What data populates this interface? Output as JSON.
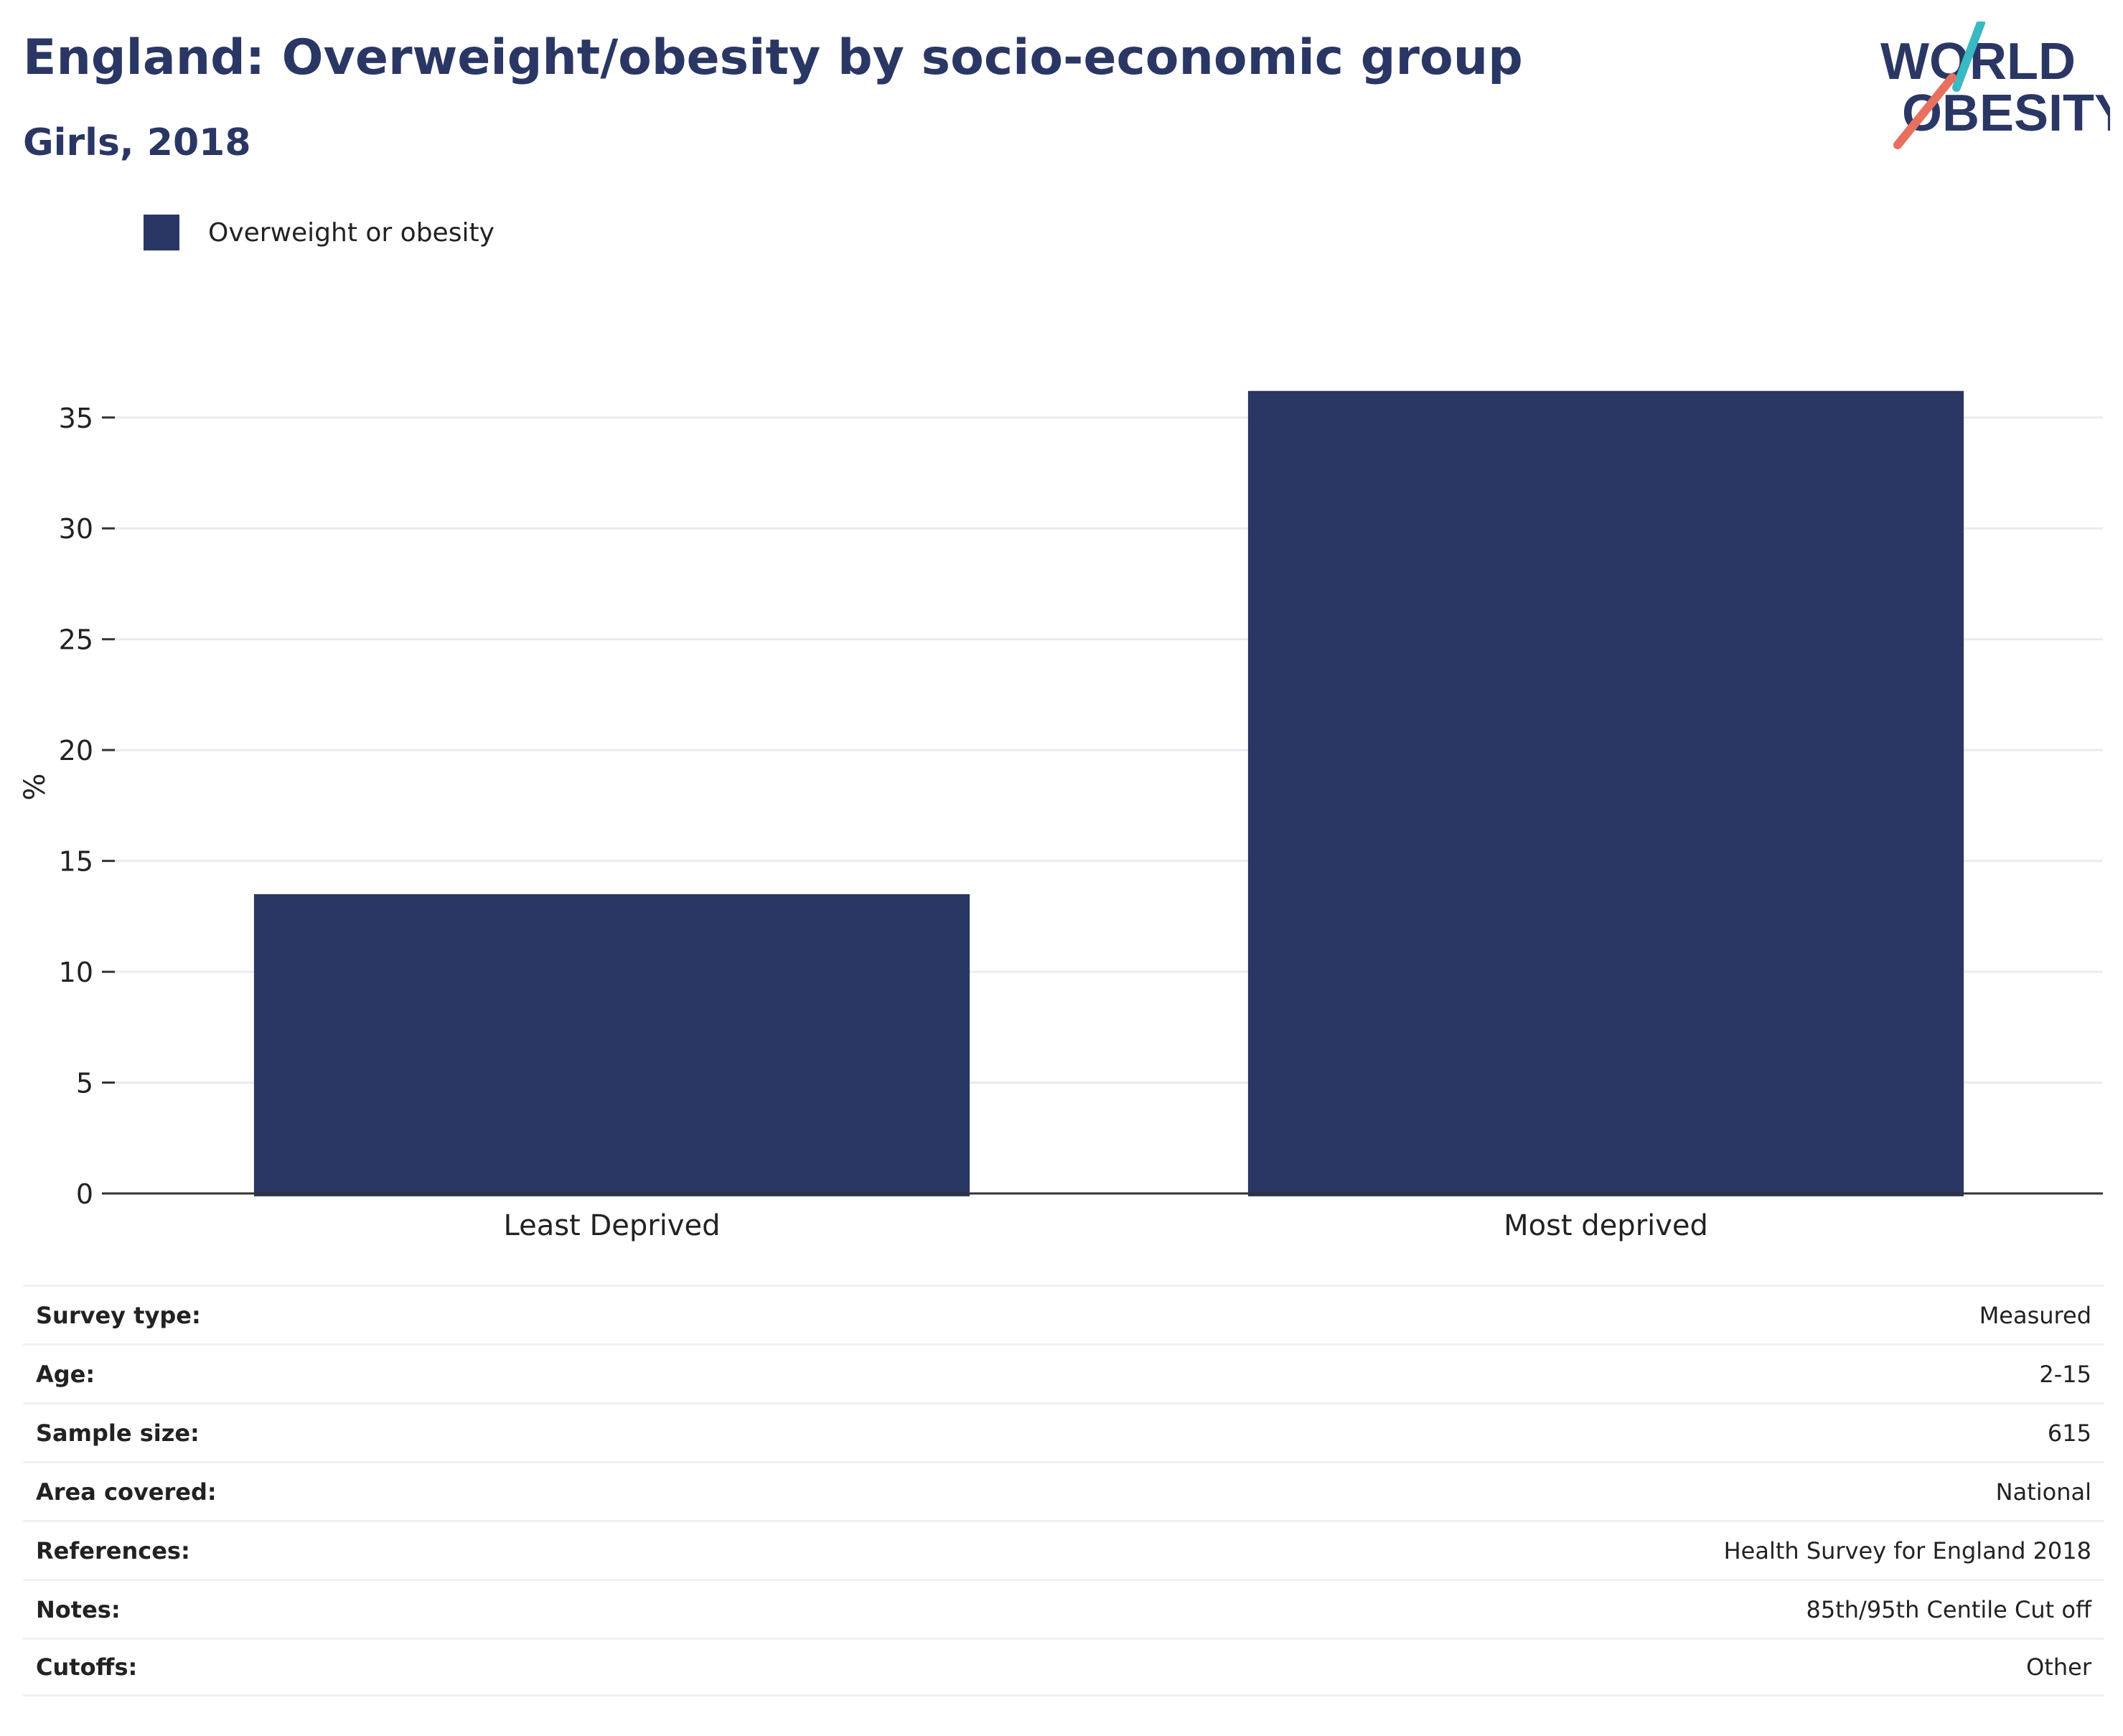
{
  "header": {
    "title": "England: Overweight/obesity by socio-economic group",
    "subtitle": "Girls, 2018"
  },
  "logo": {
    "line1": "WORLD",
    "line2": "OBESITY",
    "accent_teal": "#3bb9c2",
    "accent_coral": "#e8705f",
    "text_color": "#2a3764"
  },
  "chart_data": {
    "type": "bar",
    "categories": [
      "Least Deprived",
      "Most deprived"
    ],
    "series": [
      {
        "name": "Overweight or obesity",
        "values": [
          13.5,
          36.2
        ],
        "color": "#2a3764"
      }
    ],
    "xlabel": "",
    "ylabel": "%",
    "ylim": [
      0,
      37
    ],
    "yticks": [
      0,
      5,
      10,
      15,
      20,
      25,
      30,
      35
    ],
    "grid": true,
    "legend_position": "top-left"
  },
  "meta": [
    {
      "key": "Survey type:",
      "value": "Measured"
    },
    {
      "key": "Age:",
      "value": "2-15"
    },
    {
      "key": "Sample size:",
      "value": "615"
    },
    {
      "key": "Area covered:",
      "value": "National"
    },
    {
      "key": "References:",
      "value": "Health Survey for England 2018"
    },
    {
      "key": "Notes:",
      "value": "85th/95th Centile Cut off"
    },
    {
      "key": "Cutoffs:",
      "value": "Other"
    }
  ]
}
